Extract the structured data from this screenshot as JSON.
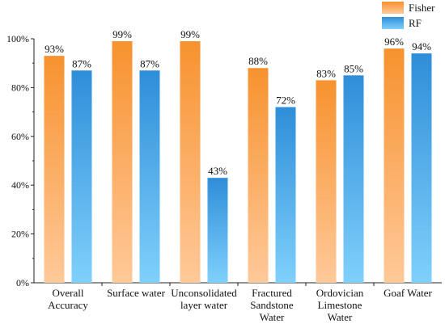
{
  "chart_data": {
    "type": "bar",
    "categories": [
      [
        "Overall",
        "Accuracy"
      ],
      [
        "Surface water"
      ],
      [
        "Unconsolidated",
        "layer water"
      ],
      [
        "Fractured",
        "Sandstone",
        "Water"
      ],
      [
        "Ordovician",
        "Limestone",
        "Water"
      ],
      [
        "Goaf Water"
      ]
    ],
    "series": [
      {
        "name": "Fisher",
        "values": [
          93,
          99,
          99,
          88,
          83,
          96
        ],
        "labels": [
          "93%",
          "99%",
          "99%",
          "88%",
          "83%",
          "96%"
        ],
        "color_top": "#f7922e",
        "color_bottom": "#ffc99a"
      },
      {
        "name": "RF",
        "values": [
          87,
          87,
          43,
          72,
          85,
          94
        ],
        "labels": [
          "87%",
          "87%",
          "43%",
          "72%",
          "85%",
          "94%"
        ],
        "color_top": "#2f8ed9",
        "color_bottom": "#7fd0fb"
      }
    ],
    "ylim": [
      0,
      100
    ],
    "yticks": [
      0,
      20,
      40,
      60,
      80,
      100
    ],
    "ytick_labels": [
      "0%",
      "20%",
      "40%",
      "60%",
      "80%",
      "100%"
    ],
    "grid": false,
    "legend_position": "top-right"
  }
}
